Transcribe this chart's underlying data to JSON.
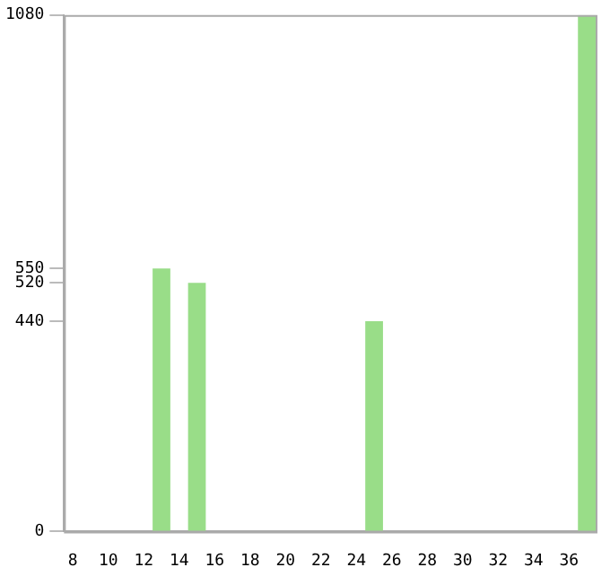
{
  "chart_data": {
    "type": "bar",
    "x": [
      13,
      15,
      25,
      37
    ],
    "values": [
      550,
      520,
      440,
      1080
    ],
    "color": "#99dd88",
    "xlim": [
      7.5,
      37.5
    ],
    "xticks": [
      8,
      10,
      12,
      14,
      16,
      18,
      20,
      22,
      24,
      26,
      28,
      30,
      32,
      34,
      36
    ],
    "ylim": [
      0,
      1080
    ],
    "yticks": [
      0,
      440,
      520,
      550,
      1080
    ],
    "grid": false,
    "legend": false
  }
}
